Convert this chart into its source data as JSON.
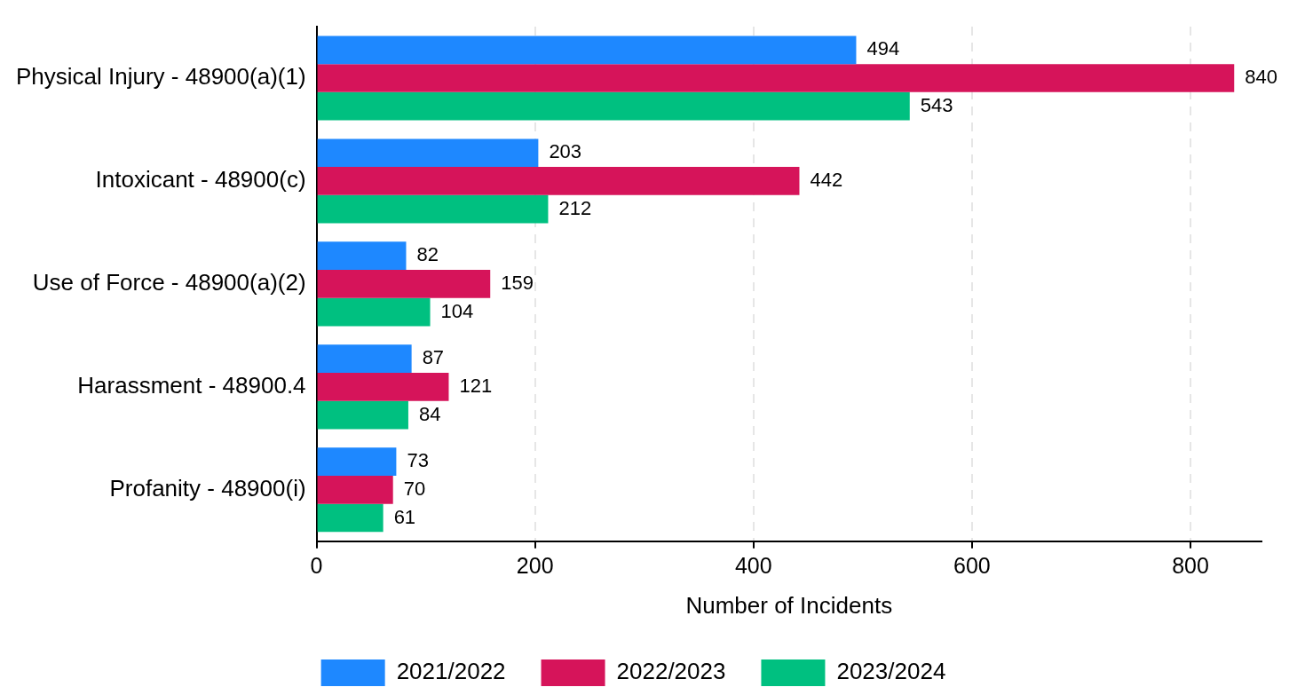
{
  "chart_data": {
    "type": "bar",
    "orientation": "horizontal",
    "xlabel": "Number of Incidents",
    "categories": [
      "Physical Injury - 48900(a)(1)",
      "Intoxicant - 48900(c)",
      "Use of Force - 48900(a)(2)",
      "Harassment - 48900.4",
      "Profanity - 48900(i)"
    ],
    "series": [
      {
        "name": "2021/2022",
        "color": "#1e88ff",
        "values": [
          494,
          203,
          82,
          87,
          73
        ]
      },
      {
        "name": "2022/2023",
        "color": "#d6145a",
        "values": [
          840,
          442,
          159,
          121,
          70
        ]
      },
      {
        "name": "2023/2024",
        "color": "#00c080",
        "values": [
          543,
          212,
          104,
          84,
          61
        ]
      }
    ],
    "xlim": [
      0,
      865
    ],
    "xticks": [
      0,
      200,
      400,
      600,
      800
    ],
    "grid": "x",
    "legend": "bottom",
    "data_labels": true
  }
}
